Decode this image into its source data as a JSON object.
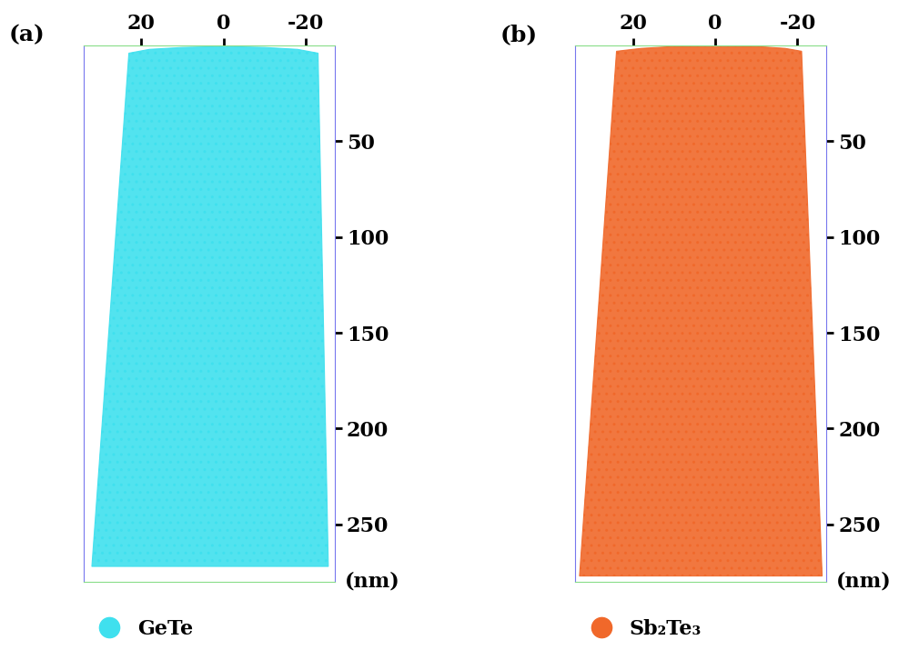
{
  "chart_data": [
    {
      "type": "area",
      "label": "(a)",
      "series": [
        {
          "name": "GeTe",
          "color": "#3fe0ee",
          "marker": "o",
          "x": [
            23,
            18,
            10,
            0,
            -10,
            -18,
            -23,
            -25.5,
            32,
            23
          ],
          "depth": [
            4,
            2,
            1,
            0.5,
            1,
            2,
            4,
            272,
            272,
            4
          ]
        }
      ],
      "xlim": [
        34,
        -27
      ],
      "xticks": [
        20,
        0,
        -20
      ],
      "ylim": [
        280,
        0
      ],
      "yticks": [
        50,
        100,
        150,
        200,
        250
      ],
      "ylabel": "(nm)",
      "legend": "upper left"
    },
    {
      "type": "area",
      "label": "(b)",
      "series": [
        {
          "name": "Sb₂Te₃",
          "color": "#f0682a",
          "marker": "o",
          "x": [
            24,
            18,
            10,
            0,
            -10,
            -17,
            -21,
            -26,
            33,
            24
          ],
          "depth": [
            3,
            1.5,
            0.5,
            0.2,
            0.5,
            1.5,
            3,
            277,
            277,
            3
          ]
        }
      ],
      "xlim": [
        34,
        -27
      ],
      "xticks": [
        20,
        0,
        -20
      ],
      "ylim": [
        280,
        0
      ],
      "yticks": [
        50,
        100,
        150,
        200,
        250
      ],
      "ylabel": "(nm)",
      "legend": "upper left"
    }
  ]
}
